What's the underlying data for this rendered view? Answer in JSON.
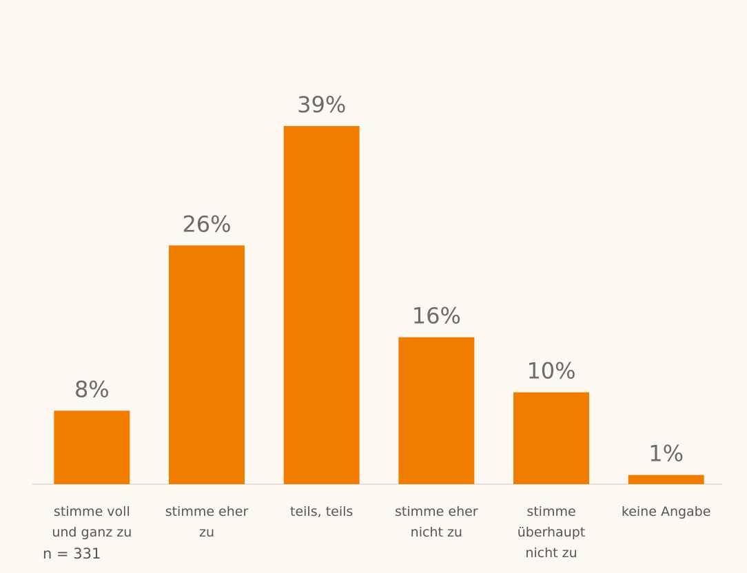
{
  "chart_data": {
    "type": "bar",
    "categories": [
      "stimme voll\nund ganz zu",
      "stimme eher\nzu",
      "teils, teils",
      "stimme eher\nnicht zu",
      "stimme\nüberhaupt\nnicht zu",
      "keine Angabe"
    ],
    "values": [
      8,
      26,
      39,
      16,
      10,
      1
    ],
    "value_labels": [
      "8%",
      "26%",
      "39%",
      "16%",
      "10%",
      "1%"
    ],
    "color": "#f07d00",
    "note": "n = 331"
  }
}
